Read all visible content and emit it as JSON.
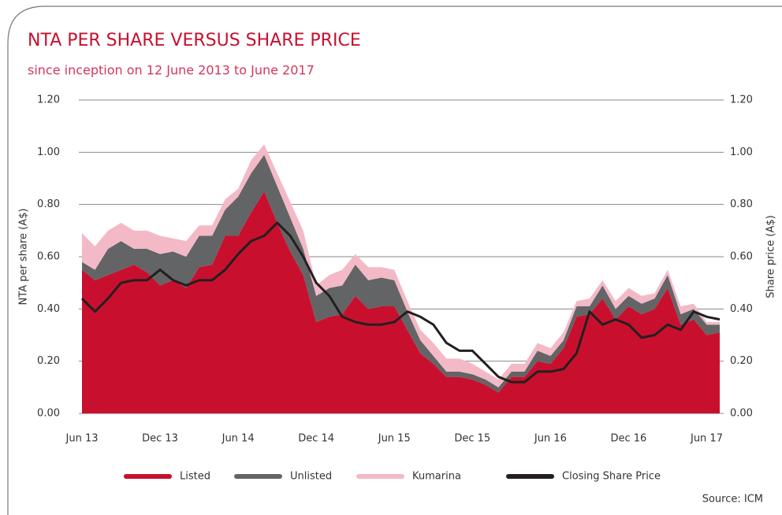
{
  "chart_data": {
    "type": "stacked_area_line",
    "title": "NTA PER SHARE VERSUS SHARE PRICE",
    "subtitle": "since inception on 12 June 2013 to June 2017",
    "y_label": "NTA per share (A$)",
    "y2_label": "Share price (A$)",
    "source": "Source: ICM",
    "categories": [
      "Jun 13",
      null,
      null,
      null,
      null,
      null,
      "Dec 13",
      null,
      null,
      null,
      null,
      null,
      "Jun 14",
      null,
      null,
      null,
      null,
      null,
      "Dec 14",
      null,
      null,
      null,
      null,
      null,
      "Jun 15",
      null,
      null,
      null,
      null,
      null,
      "Dec 15",
      null,
      null,
      null,
      null,
      null,
      "Jun 16",
      null,
      null,
      null,
      null,
      null,
      "Dec 16",
      null,
      null,
      null,
      null,
      null,
      "Jun 17",
      null
    ],
    "series": [
      {
        "name": "Listed",
        "color": "#c8102e",
        "kind": "area",
        "values": [
          0.55,
          0.51,
          0.53,
          0.55,
          0.57,
          0.54,
          0.49,
          0.51,
          0.48,
          0.56,
          0.57,
          0.68,
          0.68,
          0.77,
          0.85,
          0.73,
          0.62,
          0.53,
          0.35,
          0.37,
          0.38,
          0.45,
          0.4,
          0.41,
          0.41,
          0.32,
          0.23,
          0.19,
          0.14,
          0.14,
          0.13,
          0.11,
          0.08,
          0.14,
          0.14,
          0.2,
          0.19,
          0.25,
          0.37,
          0.38,
          0.44,
          0.36,
          0.41,
          0.38,
          0.4,
          0.48,
          0.34,
          0.36,
          0.3,
          0.31
        ]
      },
      {
        "name": "Unlisted",
        "color": "#636466",
        "kind": "area",
        "values": [
          0.03,
          0.04,
          0.1,
          0.11,
          0.06,
          0.09,
          0.12,
          0.11,
          0.12,
          0.12,
          0.11,
          0.1,
          0.15,
          0.15,
          0.14,
          0.14,
          0.13,
          0.1,
          0.1,
          0.11,
          0.11,
          0.12,
          0.11,
          0.11,
          0.1,
          0.07,
          0.05,
          0.03,
          0.02,
          0.02,
          0.02,
          0.02,
          0.02,
          0.02,
          0.02,
          0.04,
          0.03,
          0.03,
          0.04,
          0.03,
          0.05,
          0.04,
          0.04,
          0.04,
          0.04,
          0.05,
          0.04,
          0.04,
          0.04,
          0.03
        ]
      },
      {
        "name": "Kumarina",
        "color": "#f4b9c6",
        "kind": "area",
        "values": [
          0.11,
          0.09,
          0.07,
          0.07,
          0.07,
          0.07,
          0.07,
          0.05,
          0.06,
          0.04,
          0.04,
          0.04,
          0.03,
          0.05,
          0.04,
          0.05,
          0.06,
          0.07,
          0.04,
          0.05,
          0.06,
          0.04,
          0.05,
          0.04,
          0.04,
          0.04,
          0.04,
          0.05,
          0.05,
          0.05,
          0.04,
          0.03,
          0.03,
          0.03,
          0.03,
          0.03,
          0.03,
          0.03,
          0.02,
          0.03,
          0.02,
          0.03,
          0.03,
          0.03,
          0.02,
          0.02,
          0.03,
          0.02,
          0.01,
          0.01
        ]
      },
      {
        "name": "Closing Share Price",
        "color": "#231f20",
        "kind": "line",
        "axis": "y2",
        "values": [
          0.44,
          0.39,
          0.44,
          0.5,
          0.51,
          0.51,
          0.55,
          0.51,
          0.49,
          0.51,
          0.51,
          0.55,
          0.61,
          0.66,
          0.68,
          0.73,
          0.68,
          0.6,
          0.5,
          0.45,
          0.37,
          0.35,
          0.34,
          0.34,
          0.35,
          0.39,
          0.37,
          0.34,
          0.27,
          0.24,
          0.24,
          0.19,
          0.14,
          0.12,
          0.12,
          0.16,
          0.16,
          0.17,
          0.23,
          0.39,
          0.34,
          0.36,
          0.34,
          0.29,
          0.3,
          0.34,
          0.32,
          0.39,
          0.37,
          0.36
        ]
      }
    ],
    "ylim": [
      0,
      1.2
    ],
    "yticks": [
      {
        "value": 0,
        "label": "0.00"
      },
      {
        "value": 0.2,
        "label": "0.20"
      },
      {
        "value": 0.4,
        "label": "0.40"
      },
      {
        "value": 0.6,
        "label": "0.60"
      },
      {
        "value": 0.8,
        "label": "0.80"
      },
      {
        "value": 1,
        "label": "1.00"
      },
      {
        "value": 1.2,
        "label": "1.20"
      }
    ],
    "y2lim": [
      0,
      1.2
    ],
    "y2ticks": [
      {
        "value": 0,
        "label": "0.00"
      },
      {
        "value": 0.2,
        "label": "0.20"
      },
      {
        "value": 0.4,
        "label": "0.40"
      },
      {
        "value": 0.6,
        "label": "0.60"
      },
      {
        "value": 0.8,
        "label": "0.80"
      },
      {
        "value": 1,
        "label": "1.00"
      },
      {
        "value": 1.2,
        "label": "1.20"
      }
    ],
    "grid": true,
    "legend": "bottom"
  }
}
